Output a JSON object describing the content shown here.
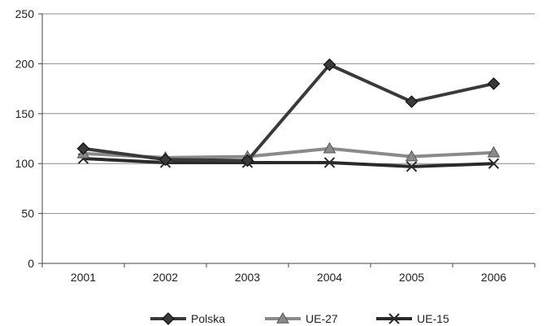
{
  "chart_data": {
    "type": "line",
    "x": [
      "2001",
      "2002",
      "2003",
      "2004",
      "2005",
      "2006"
    ],
    "ylim": [
      0,
      250
    ],
    "yticks": [
      0,
      50,
      100,
      150,
      200,
      250
    ],
    "grid": true,
    "legend": "bottom",
    "series": [
      {
        "name": "Polska",
        "values": [
          115,
          104,
          103,
          199,
          162,
          180
        ],
        "color": "#3a3a3a",
        "marker": "diamond"
      },
      {
        "name": "UE-27",
        "values": [
          110,
          106,
          107,
          115,
          107,
          111
        ],
        "color": "#8a8a8a",
        "marker": "triangle"
      },
      {
        "name": "UE-15",
        "values": [
          105,
          101,
          101,
          101,
          97,
          100
        ],
        "color": "#2a2a2a",
        "marker": "x"
      }
    ]
  }
}
